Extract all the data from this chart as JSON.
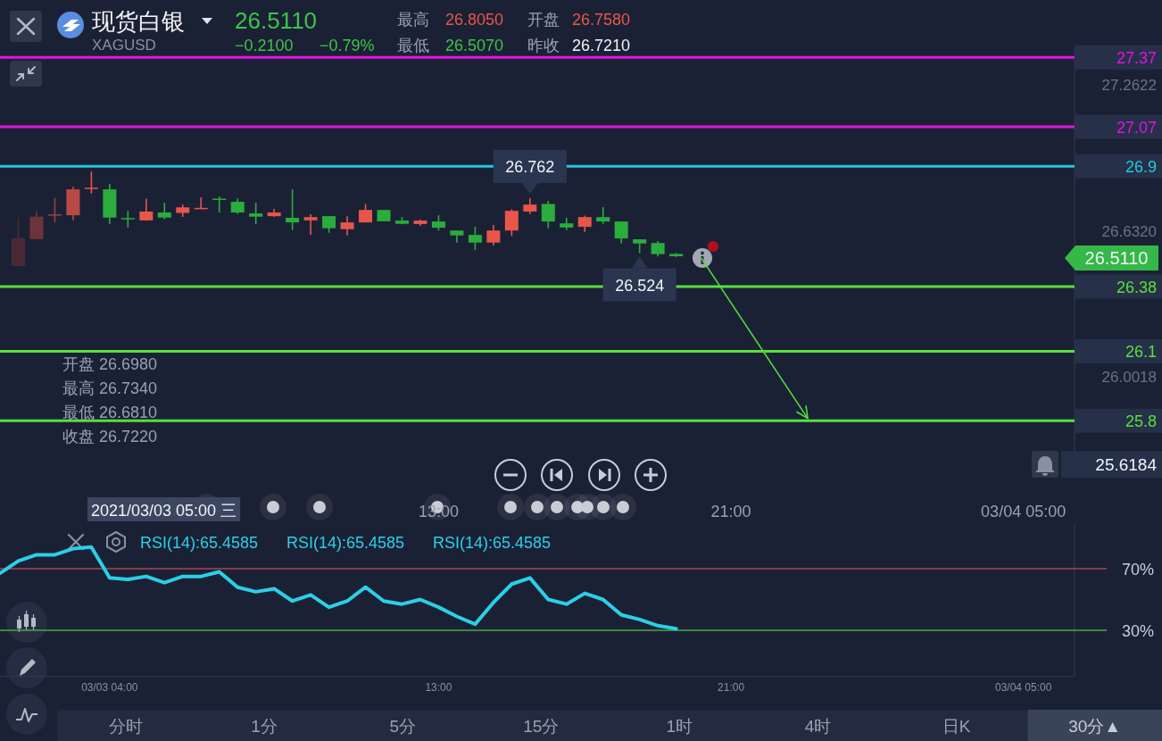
{
  "chart_data": [
    {
      "type": "other",
      "title": "现货白银",
      "subtitle": "XAGUSD",
      "annotations": [
        "26.5110",
        "−0.2100",
        "−0.79%",
        "最高",
        "26.8050",
        "开盘",
        "26.7580",
        "最低",
        "26.5070",
        "昨收",
        "26.7210"
      ]
    },
    {
      "type": "candlestick",
      "x": [
        1.5,
        2.0,
        2.5,
        3.0,
        3.5,
        4.0,
        4.5,
        5.0,
        5.5,
        6.0,
        6.5,
        7.0,
        7.5,
        8.0,
        8.5,
        9.0,
        9.5,
        10.0,
        10.5,
        11.0,
        11.5,
        12.0,
        12.5,
        13.0,
        13.5,
        14.0,
        14.5,
        15.0,
        15.5,
        16.0,
        16.5,
        17.0,
        17.5,
        18.0,
        18.5,
        19.0,
        19.5
      ],
      "ohlc": [
        [
          26.468,
          26.679,
          26.468,
          26.589
        ],
        [
          26.585,
          26.705,
          26.585,
          26.682
        ],
        [
          26.691,
          26.763,
          26.657,
          26.692
        ],
        [
          26.688,
          26.812,
          26.666,
          26.8
        ],
        [
          26.805,
          26.877,
          26.782,
          26.807
        ],
        [
          26.8,
          26.823,
          26.651,
          26.678
        ],
        [
          26.676,
          26.707,
          26.635,
          26.675
        ],
        [
          26.666,
          26.76,
          26.664,
          26.704
        ],
        [
          26.7,
          26.742,
          26.67,
          26.678
        ],
        [
          26.698,
          26.734,
          26.681,
          26.722
        ],
        [
          26.718,
          26.765,
          26.718,
          26.72
        ],
        [
          26.76,
          26.769,
          26.7,
          26.758
        ],
        [
          26.746,
          26.761,
          26.693,
          26.7
        ],
        [
          26.696,
          26.742,
          26.65,
          26.682
        ],
        [
          26.684,
          26.715,
          26.682,
          26.7
        ],
        [
          26.677,
          26.8,
          26.624,
          26.657
        ],
        [
          26.666,
          26.692,
          26.604,
          26.68
        ],
        [
          26.684,
          26.684,
          26.612,
          26.632
        ],
        [
          26.628,
          26.684,
          26.601,
          26.657
        ],
        [
          26.657,
          26.737,
          26.657,
          26.711
        ],
        [
          26.711,
          26.711,
          26.662,
          26.662
        ],
        [
          26.665,
          26.68,
          26.649,
          26.651
        ],
        [
          26.65,
          26.669,
          26.642,
          26.665
        ],
        [
          26.661,
          26.688,
          26.622,
          26.634
        ],
        [
          26.622,
          26.622,
          26.57,
          26.601
        ],
        [
          26.603,
          26.638,
          26.538,
          26.57
        ],
        [
          26.57,
          26.646,
          26.557,
          26.622
        ],
        [
          26.622,
          26.714,
          26.599,
          26.707
        ],
        [
          26.704,
          26.762,
          26.693,
          26.734
        ],
        [
          26.737,
          26.75,
          26.632,
          26.661
        ],
        [
          26.653,
          26.677,
          26.624,
          26.635
        ],
        [
          26.638,
          26.686,
          26.616,
          26.68
        ],
        [
          26.68,
          26.723,
          26.651,
          26.661
        ],
        [
          26.661,
          26.661,
          26.566,
          26.588
        ],
        [
          26.584,
          26.584,
          26.524,
          26.566
        ],
        [
          26.568,
          26.577,
          26.51,
          26.52
        ],
        [
          26.521,
          26.525,
          26.508,
          26.511
        ]
      ],
      "colors": [
        "#4a2934",
        "#6e333a",
        "#9a4240",
        "#b84a44",
        "#e8564a",
        "#2aad3c",
        "#2aad3c",
        "#e8564a",
        "#2aad3c",
        "#e8564a",
        "#e8564a",
        "#2aad3c",
        "#2aad3c",
        "#2aad3c",
        "#e8564a",
        "#2aad3c",
        "#e8564a",
        "#2aad3c",
        "#e8564a",
        "#e8564a",
        "#2aad3c",
        "#2aad3c",
        "#e8564a",
        "#2aad3c",
        "#2aad3c",
        "#2aad3c",
        "#e8564a",
        "#e8564a",
        "#e8564a",
        "#2aad3c",
        "#2aad3c",
        "#e8564a",
        "#2aad3c",
        "#2aad3c",
        "#2aad3c",
        "#2aad3c",
        "#2aad3c"
      ],
      "xlim": [
        1.0,
        30.4
      ],
      "ylim": [
        25.6184,
        27.41
      ],
      "xticks": [
        {
          "value": 13,
          "label": "13:00"
        },
        {
          "value": 21,
          "label": "21:00"
        },
        {
          "value": 29,
          "label": "03/04 05:00"
        }
      ],
      "yticks": [
        27.2622,
        {
          "value": 26.632,
          "label": "26.6320"
        },
        26.0018,
        25.6184
      ],
      "ref_lines": [
        {
          "axis": "y",
          "value": 27.37,
          "label": "27.37",
          "color": "#e312e3"
        },
        {
          "axis": "y",
          "value": 27.07,
          "label": "27.07",
          "color": "#e312e3"
        },
        {
          "axis": "y",
          "value": 26.9,
          "label": "26.9",
          "color": "#22c8dc"
        },
        {
          "axis": "y",
          "value": 26.38,
          "label": "26.38",
          "color": "#58e03a"
        },
        {
          "axis": "y",
          "value": 26.1,
          "label": "26.1",
          "color": "#58e03a"
        },
        {
          "axis": "y",
          "value": 25.8,
          "label": "25.8",
          "color": "#58e03a"
        }
      ],
      "series": [
        {
          "type": "line",
          "x": [
            20.2,
            23.1
          ],
          "values": [
            26.5,
            25.81
          ],
          "color": "#4fe03c"
        }
      ],
      "annotations": [
        {
          "text": "26.762",
          "x": 15.5,
          "y": 26.762
        },
        {
          "text": "26.524",
          "x": 18.5,
          "y": 26.524
        },
        "26.5110",
        "开盘 26.6980",
        "最高 26.7340",
        "最低 26.6810",
        "收盘 26.7220",
        "2021/03/03 05:00 三"
      ]
    },
    {
      "type": "line",
      "series": [
        {
          "color": "#2ccfe6",
          "x": [
            1.0,
            1.5,
            2.0,
            2.5,
            3.0,
            3.5,
            4.0,
            4.5,
            5.0,
            5.5,
            6.0,
            6.5,
            7.0,
            7.5,
            8.0,
            8.5,
            9.0,
            9.5,
            10.0,
            10.5,
            11.0,
            11.5,
            12.0,
            12.5,
            13.0,
            13.5,
            14.0,
            14.5,
            15.0,
            15.5,
            16.0,
            16.5,
            17.0,
            17.5,
            18.0,
            18.5,
            19.0,
            19.5
          ],
          "values": [
            67,
            75,
            79,
            79,
            83,
            84,
            64,
            63,
            65,
            61,
            65,
            65,
            68,
            58,
            55,
            57,
            49,
            53,
            45,
            49,
            58,
            49,
            47,
            50,
            45,
            39,
            34,
            48,
            60,
            64,
            50,
            47,
            54,
            50,
            40,
            37,
            33,
            31
          ]
        }
      ],
      "xlim": [
        1.0,
        30.4
      ],
      "ylim": [
        0,
        100
      ],
      "xticks": [
        {
          "value": 4,
          "label": "03/03 04:00"
        },
        {
          "value": 13,
          "label": "13:00"
        },
        {
          "value": 21,
          "label": "21:00"
        },
        {
          "value": 29,
          "label": "03/04 05:00"
        }
      ],
      "yticks": [
        {
          "value": 70,
          "label": "70%"
        },
        {
          "value": 30,
          "label": "30%"
        }
      ],
      "ref_lines": [
        {
          "axis": "y",
          "value": 70,
          "color": "#a5464f"
        },
        {
          "axis": "y",
          "value": 30,
          "color": "#48a848"
        }
      ],
      "annotations": [
        "RSI(14):65.4585",
        "RSI(14):65.4585",
        "RSI(14):65.4585"
      ]
    },
    {
      "type": "other",
      "annotations": [
        "分时",
        "1分",
        "5分",
        "15分",
        "1时",
        "4时",
        "日K",
        "30分▲"
      ]
    }
  ]
}
